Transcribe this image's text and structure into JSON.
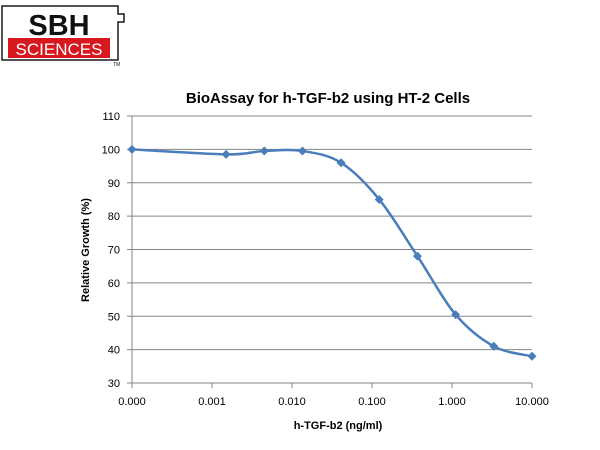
{
  "logo": {
    "top_text": "SBH",
    "bottom_text": "SCIENCES",
    "trademark": "TM",
    "colors": {
      "red": "#d7181f",
      "border": "#1a1a1a"
    }
  },
  "chart_data": {
    "type": "line",
    "title": "BioAssay for h-TGF-b2 using HT-2 Cells",
    "xlabel": "h-TGF-b2 (ng/ml)",
    "ylabel": "Relative Growth (%)",
    "x_scale": "log",
    "xlim": [
      0.0001,
      10
    ],
    "ylim": [
      30,
      110
    ],
    "x_tick_values": [
      0.0001,
      0.001,
      0.01,
      0.1,
      1,
      10
    ],
    "x_tick_labels": [
      "0.000",
      "0.001",
      "0.010",
      "0.100",
      "1.000",
      "10.000"
    ],
    "y_ticks": [
      30,
      40,
      50,
      60,
      70,
      80,
      90,
      100,
      110
    ],
    "grid": "horizontal",
    "legend": "none",
    "series": [
      {
        "color": "#4a7ebb",
        "marker": "diamond",
        "smooth": true,
        "x": [
          0.0001,
          0.0015,
          0.0045,
          0.0135,
          0.041,
          0.123,
          0.37,
          1.11,
          3.33,
          10
        ],
        "y": [
          100,
          98.5,
          99.5,
          99.5,
          96,
          85,
          68,
          50.5,
          41,
          38
        ]
      }
    ]
  }
}
